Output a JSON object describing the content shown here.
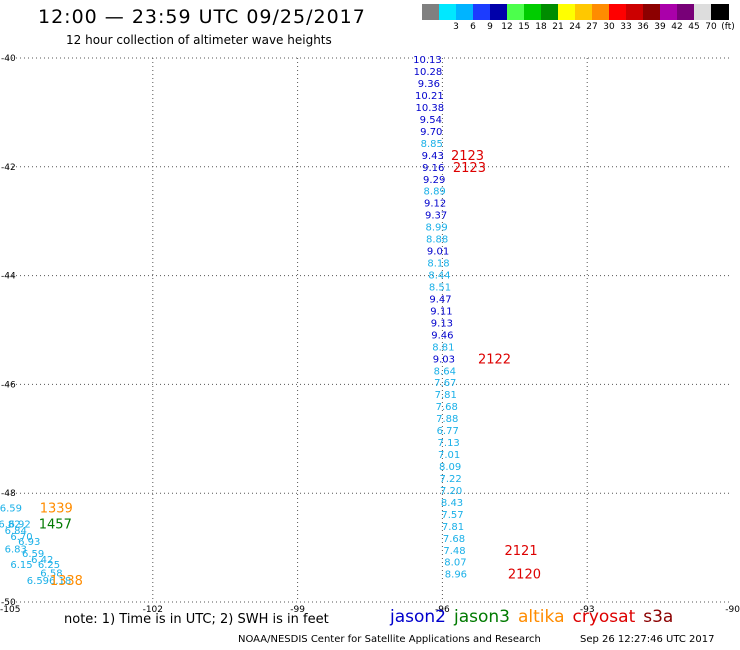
{
  "header": {
    "title": "12:00 — 23:59 UTC 09/25/2017",
    "subtitle": "12 hour collection of altimeter wave heights"
  },
  "colorbar": [
    {
      "color": "#808080",
      "label": ""
    },
    {
      "color": "#00e8ff",
      "label": "3"
    },
    {
      "color": "#00b4ff",
      "label": "6"
    },
    {
      "color": "#1c3cff",
      "label": "9"
    },
    {
      "color": "#0000aa",
      "label": "12"
    },
    {
      "color": "#4cff4c",
      "label": "15"
    },
    {
      "color": "#00cc00",
      "label": "18"
    },
    {
      "color": "#008c00",
      "label": "21"
    },
    {
      "color": "#ffff00",
      "label": "24"
    },
    {
      "color": "#ffc800",
      "label": "27"
    },
    {
      "color": "#ff8c00",
      "label": "30"
    },
    {
      "color": "#ff0000",
      "label": "33"
    },
    {
      "color": "#cc0000",
      "label": "36"
    },
    {
      "color": "#8c0000",
      "label": "39"
    },
    {
      "color": "#aa00aa",
      "label": "42"
    },
    {
      "color": "#780078",
      "label": "45"
    },
    {
      "color": "#dddddd",
      "label": "70"
    },
    {
      "color": "#000000",
      "label": "(ft)"
    }
  ],
  "chart_data": {
    "type": "scatter",
    "title": "12:00 — 23:59 UTC 09/25/2017",
    "subtitle": "12 hour collection of altimeter wave heights",
    "xlim": [
      -105,
      -90
    ],
    "ylim": [
      -50,
      -40
    ],
    "xticks": [
      -105,
      -102,
      -99,
      -96,
      -93,
      -90
    ],
    "xtick_labels": [
      "-105",
      "-102",
      "-99",
      "-96",
      "-93",
      "-90"
    ],
    "yticks": [
      -40,
      -42,
      -44,
      -46,
      -48,
      -50
    ],
    "ytick_labels": [
      "-40",
      "-42",
      "-44",
      "-46",
      "-48",
      "-50"
    ],
    "grid": true,
    "colors": {
      "jason2": "#0000cc",
      "light": "#1ab0e8",
      "jason3": "#007a00",
      "altika": "#ff8c00",
      "cryosat": "#dd0000",
      "s3a": "#8b0000"
    },
    "points": [
      {
        "lon": -96.31,
        "lat": -40.02,
        "label": "10.13",
        "c": "jason2"
      },
      {
        "lon": -96.3,
        "lat": -40.24,
        "label": "10.28",
        "c": "jason2"
      },
      {
        "lon": -96.28,
        "lat": -40.46,
        "label": "9.36",
        "c": "jason2"
      },
      {
        "lon": -96.27,
        "lat": -40.68,
        "label": "10.21",
        "c": "jason2"
      },
      {
        "lon": -96.26,
        "lat": -40.9,
        "label": "10.38",
        "c": "jason2"
      },
      {
        "lon": -96.24,
        "lat": -41.12,
        "label": "9.54",
        "c": "jason2"
      },
      {
        "lon": -96.23,
        "lat": -41.34,
        "label": "9.70",
        "c": "jason2"
      },
      {
        "lon": -96.22,
        "lat": -41.56,
        "label": "8.85",
        "c": "light"
      },
      {
        "lon": -96.2,
        "lat": -41.78,
        "label": "9.43",
        "c": "jason2"
      },
      {
        "lon": -96.19,
        "lat": -42.0,
        "label": "9.16",
        "c": "jason2"
      },
      {
        "lon": -96.17,
        "lat": -42.22,
        "label": "9.29",
        "c": "jason2"
      },
      {
        "lon": -96.16,
        "lat": -42.44,
        "label": "8.89",
        "c": "light"
      },
      {
        "lon": -96.15,
        "lat": -42.66,
        "label": "9.12",
        "c": "jason2"
      },
      {
        "lon": -96.13,
        "lat": -42.88,
        "label": "9.37",
        "c": "jason2"
      },
      {
        "lon": -96.12,
        "lat": -43.1,
        "label": "8.99",
        "c": "light"
      },
      {
        "lon": -96.11,
        "lat": -43.32,
        "label": "8.88",
        "c": "light"
      },
      {
        "lon": -96.09,
        "lat": -43.54,
        "label": "9.01",
        "c": "jason2"
      },
      {
        "lon": -96.08,
        "lat": -43.76,
        "label": "8.18",
        "c": "light"
      },
      {
        "lon": -96.06,
        "lat": -43.98,
        "label": "8.44",
        "c": "light"
      },
      {
        "lon": -96.05,
        "lat": -44.2,
        "label": "8.51",
        "c": "light"
      },
      {
        "lon": -96.04,
        "lat": -44.42,
        "label": "9.47",
        "c": "jason2"
      },
      {
        "lon": -96.02,
        "lat": -44.64,
        "label": "9.11",
        "c": "jason2"
      },
      {
        "lon": -96.01,
        "lat": -44.86,
        "label": "9.13",
        "c": "jason2"
      },
      {
        "lon": -96.0,
        "lat": -45.08,
        "label": "9.46",
        "c": "jason2"
      },
      {
        "lon": -95.98,
        "lat": -45.3,
        "label": "8.81",
        "c": "light"
      },
      {
        "lon": -95.97,
        "lat": -45.52,
        "label": "9.03",
        "c": "jason2"
      },
      {
        "lon": -95.95,
        "lat": -45.74,
        "label": "8.64",
        "c": "light"
      },
      {
        "lon": -95.94,
        "lat": -45.96,
        "label": "7.67",
        "c": "light"
      },
      {
        "lon": -95.93,
        "lat": -46.18,
        "label": "7.81",
        "c": "light"
      },
      {
        "lon": -95.91,
        "lat": -46.4,
        "label": "7.68",
        "c": "light"
      },
      {
        "lon": -95.9,
        "lat": -46.62,
        "label": "7.88",
        "c": "light"
      },
      {
        "lon": -95.89,
        "lat": -46.84,
        "label": "6.77",
        "c": "light"
      },
      {
        "lon": -95.87,
        "lat": -47.06,
        "label": "7.13",
        "c": "light"
      },
      {
        "lon": -95.86,
        "lat": -47.28,
        "label": "7.01",
        "c": "light"
      },
      {
        "lon": -95.84,
        "lat": -47.5,
        "label": "8.09",
        "c": "light"
      },
      {
        "lon": -95.83,
        "lat": -47.72,
        "label": "7.22",
        "c": "light"
      },
      {
        "lon": -95.82,
        "lat": -47.94,
        "label": "7.20",
        "c": "light"
      },
      {
        "lon": -95.8,
        "lat": -48.16,
        "label": "8.43",
        "c": "light"
      },
      {
        "lon": -95.79,
        "lat": -48.38,
        "label": "7.57",
        "c": "light"
      },
      {
        "lon": -95.78,
        "lat": -48.6,
        "label": "7.81",
        "c": "light"
      },
      {
        "lon": -95.76,
        "lat": -48.82,
        "label": "7.68",
        "c": "light"
      },
      {
        "lon": -95.75,
        "lat": -49.04,
        "label": "7.48",
        "c": "light"
      },
      {
        "lon": -95.73,
        "lat": -49.26,
        "label": "8.07",
        "c": "light"
      },
      {
        "lon": -95.72,
        "lat": -49.48,
        "label": "8.96",
        "c": "light"
      },
      {
        "lon": -104.94,
        "lat": -48.26,
        "label": "6.59",
        "c": "light"
      },
      {
        "lon": -104.97,
        "lat": -48.56,
        "label": "6.82",
        "c": "light"
      },
      {
        "lon": -104.76,
        "lat": -48.56,
        "label": "6.92",
        "c": "light"
      },
      {
        "lon": -104.84,
        "lat": -48.68,
        "label": "6.84",
        "c": "light"
      },
      {
        "lon": -104.72,
        "lat": -48.79,
        "label": "6.70",
        "c": "light"
      },
      {
        "lon": -104.56,
        "lat": -48.88,
        "label": "6.93",
        "c": "light"
      },
      {
        "lon": -104.84,
        "lat": -49.02,
        "label": "6.83",
        "c": "light"
      },
      {
        "lon": -104.48,
        "lat": -49.1,
        "label": "6.59",
        "c": "light"
      },
      {
        "lon": -104.29,
        "lat": -49.21,
        "label": "6.42",
        "c": "light"
      },
      {
        "lon": -104.72,
        "lat": -49.3,
        "label": "6.15",
        "c": "light"
      },
      {
        "lon": -104.15,
        "lat": -49.3,
        "label": "6.25",
        "c": "light"
      },
      {
        "lon": -104.1,
        "lat": -49.46,
        "label": "6.58",
        "c": "light"
      },
      {
        "lon": -104.38,
        "lat": -49.6,
        "label": "6.59",
        "c": "light"
      },
      {
        "lon": -103.92,
        "lat": -49.6,
        "label": "6.18",
        "c": "light"
      }
    ],
    "markers": [
      {
        "lon": -95.48,
        "lat": -41.78,
        "label": "2123",
        "c": "cryosat"
      },
      {
        "lon": -95.44,
        "lat": -42.0,
        "label": "2123",
        "c": "cryosat"
      },
      {
        "lon": -94.92,
        "lat": -45.52,
        "label": "2122",
        "c": "cryosat"
      },
      {
        "lon": -94.37,
        "lat": -49.04,
        "label": "2121",
        "c": "cryosat"
      },
      {
        "lon": -94.3,
        "lat": -49.48,
        "label": "2120",
        "c": "cryosat"
      },
      {
        "lon": -104.0,
        "lat": -48.26,
        "label": "1339",
        "c": "altika"
      },
      {
        "lon": -104.02,
        "lat": -48.56,
        "label": "1457",
        "c": "jason3"
      },
      {
        "lon": -103.79,
        "lat": -49.6,
        "label": "1338",
        "c": "altika"
      }
    ]
  },
  "footer": {
    "note": "note: 1) Time is in UTC; 2) SWH is in feet",
    "credit": "NOAA/NESDIS Center for Satellite Applications and Research",
    "timestamp": "Sep 26 12:27:46 UTC 2017"
  },
  "legend": [
    {
      "label": "jason2",
      "color": "#0000cc"
    },
    {
      "label": "jason3",
      "color": "#007a00"
    },
    {
      "label": "altika",
      "color": "#ff8c00"
    },
    {
      "label": "cryosat",
      "color": "#dd0000"
    },
    {
      "label": "s3a",
      "color": "#8b0000"
    }
  ]
}
